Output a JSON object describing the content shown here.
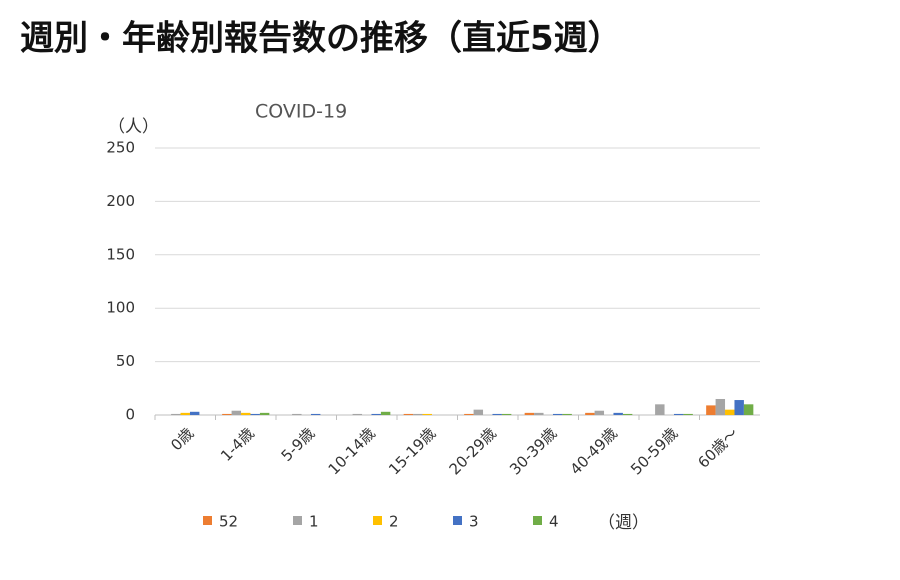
{
  "page_title": "週別・年齢別報告数の推移（直近5週）",
  "chart_data": {
    "type": "bar",
    "title": "COVID-19",
    "y_label": "（人）",
    "legend_unit": "（週）",
    "categories": [
      "0歳",
      "1-4歳",
      "5-9歳",
      "10-14歳",
      "15-19歳",
      "20-29歳",
      "30-39歳",
      "40-49歳",
      "50-59歳",
      "60歳～"
    ],
    "series": [
      {
        "name": "52",
        "color": "#ed7d31",
        "values": [
          0,
          1,
          0,
          0,
          1,
          1,
          2,
          2,
          0,
          9
        ]
      },
      {
        "name": "1",
        "color": "#a5a5a5",
        "values": [
          1,
          4,
          1,
          1,
          1,
          5,
          2,
          4,
          10,
          15
        ]
      },
      {
        "name": "2",
        "color": "#ffc000",
        "values": [
          2,
          2,
          0,
          0,
          1,
          0,
          0,
          0,
          0,
          5
        ]
      },
      {
        "name": "3",
        "color": "#4472c4",
        "values": [
          3,
          1,
          1,
          1,
          0,
          1,
          1,
          2,
          1,
          14
        ]
      },
      {
        "name": "4",
        "color": "#70ad47",
        "values": [
          0,
          2,
          0,
          3,
          0,
          1,
          1,
          1,
          1,
          10
        ]
      }
    ],
    "ylim": [
      0,
      250
    ],
    "yticks": [
      0,
      50,
      100,
      150,
      200,
      250
    ],
    "grid": true
  }
}
